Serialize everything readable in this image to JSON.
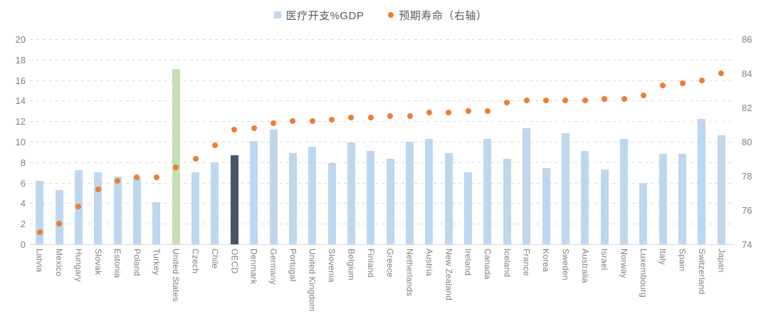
{
  "legend": {
    "items": [
      {
        "label": "医疗开支%GDP",
        "marker": "square-icon"
      },
      {
        "label": "预期寿命（右轴）",
        "marker": "dot-icon"
      }
    ]
  },
  "colors": {
    "bar_default": "#BDD7EE",
    "bar_highlight_us": "#C5E0B4",
    "bar_highlight_oecd": "#44546A",
    "dot": "#ED7D31",
    "gridline": "#D9D9D9",
    "axis_text": "#7F7F7F",
    "legend_text": "#595959"
  },
  "chart_data": {
    "type": "bar",
    "title": "",
    "xlabel": "",
    "ylabel": "",
    "grid": "horizontal-dashed",
    "legend_position": "top-center",
    "categories": [
      "Latvia",
      "Mexico",
      "Hungary",
      "Slovak",
      "Estonia",
      "Poland",
      "Turkey",
      "United States",
      "Czech",
      "Chile",
      "OECD",
      "Denmark",
      "Germany",
      "Portugal",
      "United Kingdom",
      "Slovenia",
      "Belgium",
      "Finland",
      "Greece",
      "Netherlands",
      "Austria",
      "New Zealand",
      "Ireland",
      "Canada",
      "Iceland",
      "France",
      "Korea",
      "Sweden",
      "Australia",
      "Israel",
      "Norway",
      "Luxembourg",
      "Italy",
      "Spain",
      "Switzerland",
      "Japan"
    ],
    "series": [
      {
        "name": "医疗开支%GDP",
        "type": "bar",
        "axis": "left",
        "color": "#BDD7EE",
        "values": [
          6.2,
          5.3,
          7.2,
          7.0,
          6.6,
          6.5,
          4.1,
          17.1,
          7.0,
          8.0,
          8.7,
          10.1,
          11.2,
          8.9,
          9.5,
          7.9,
          9.9,
          9.1,
          8.3,
          10.0,
          10.3,
          8.9,
          7.0,
          10.3,
          8.3,
          11.3,
          7.4,
          10.8,
          9.1,
          7.3,
          10.3,
          6.0,
          8.8,
          8.8,
          12.2,
          10.6
        ]
      },
      {
        "name": "预期寿命（右轴）",
        "type": "scatter",
        "axis": "right",
        "color": "#ED7D31",
        "values": [
          74.7,
          75.2,
          76.2,
          77.2,
          77.7,
          77.9,
          77.9,
          78.5,
          79.0,
          79.8,
          80.7,
          80.8,
          81.1,
          81.2,
          81.2,
          81.3,
          81.4,
          81.4,
          81.5,
          81.5,
          81.7,
          81.7,
          81.8,
          81.8,
          82.3,
          82.4,
          82.4,
          82.4,
          82.4,
          82.5,
          82.5,
          82.7,
          83.3,
          83.4,
          83.6,
          84.0
        ]
      }
    ],
    "highlights": {
      "United States": "#C5E0B4",
      "OECD": "#44546A"
    },
    "left_axis": {
      "min": 0,
      "max": 20,
      "step": 2,
      "ticks": [
        0,
        2,
        4,
        6,
        8,
        10,
        12,
        14,
        16,
        18,
        20
      ]
    },
    "right_axis": {
      "min": 74,
      "max": 86,
      "step": 2,
      "ticks": [
        74,
        76,
        78,
        80,
        82,
        84,
        86
      ]
    }
  }
}
